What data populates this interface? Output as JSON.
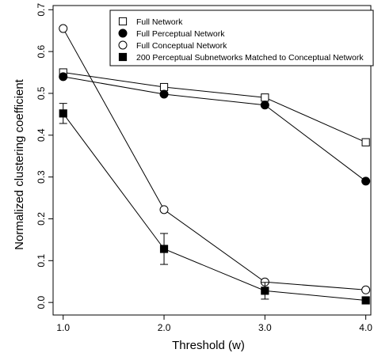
{
  "chart_data": {
    "type": "line",
    "xlabel": "Threshold (w)",
    "ylabel": "Normalized clustering coefficient",
    "xlim": [
      0.9,
      4.05
    ],
    "ylim": [
      -0.03,
      0.71
    ],
    "xticks": [
      1.0,
      2.0,
      3.0,
      4.0
    ],
    "xtick_labels": [
      "1.0",
      "2.0",
      "3.0",
      "4.0"
    ],
    "yticks": [
      0.0,
      0.1,
      0.2,
      0.3,
      0.4,
      0.5,
      0.6,
      0.7
    ],
    "ytick_labels": [
      "0.0",
      "0.1",
      "0.2",
      "0.3",
      "0.4",
      "0.5",
      "0.6",
      "0.7"
    ],
    "grid": false,
    "legend_position": "top-right",
    "x": [
      1.0,
      2.0,
      3.0,
      4.0
    ],
    "series": [
      {
        "name": "Full Network",
        "marker": "open-square",
        "values": [
          0.55,
          0.515,
          0.49,
          0.383
        ]
      },
      {
        "name": "Full Perceptual Network",
        "marker": "filled-circle",
        "values": [
          0.54,
          0.498,
          0.472,
          0.29
        ]
      },
      {
        "name": "Full Conceptual Network",
        "marker": "open-circle",
        "values": [
          0.655,
          0.222,
          0.049,
          0.03
        ]
      },
      {
        "name": "200 Perceptual Subnetworks Matched to Conceptual Network",
        "marker": "filled-square",
        "values": [
          0.452,
          0.128,
          0.028,
          0.005
        ],
        "errors": [
          0.024,
          0.037,
          0.02,
          0.0
        ]
      }
    ]
  }
}
